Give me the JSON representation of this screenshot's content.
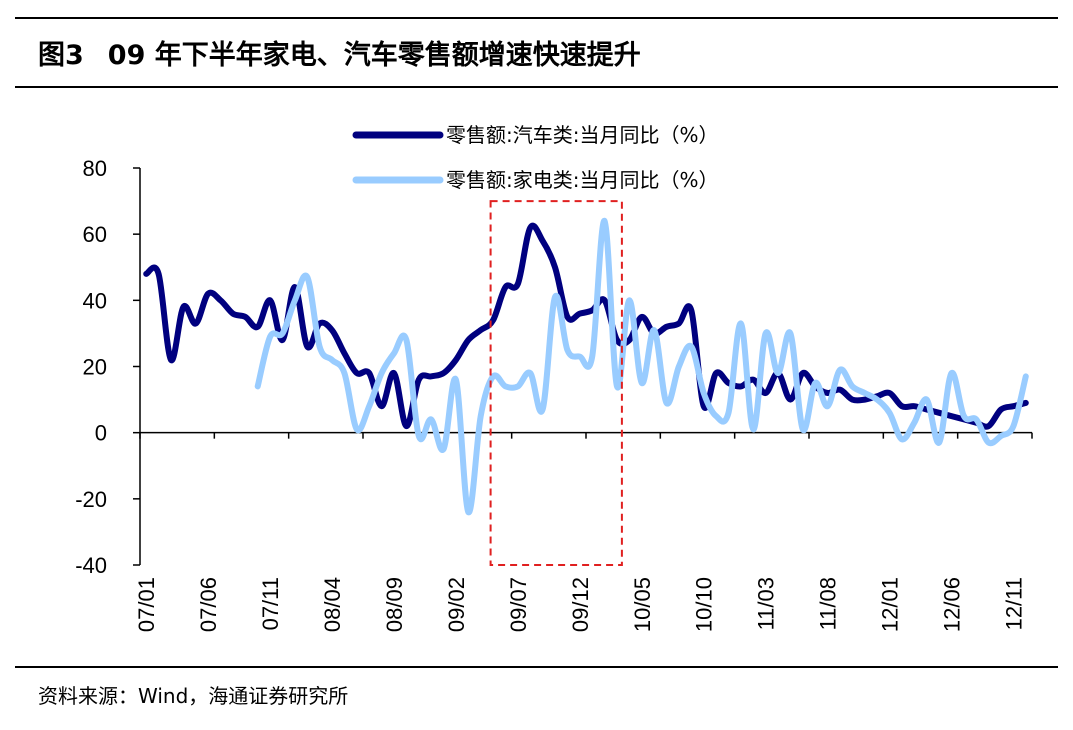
{
  "figure": {
    "title_num": "图3",
    "title_text": "09 年下半年家电、汽车零售额增速快速提升",
    "source": "资料来源：Wind，海通证券研究所"
  },
  "colors": {
    "auto": "#00007f",
    "appliance": "#99ccff",
    "highlight": "#e02020"
  },
  "chart_data": {
    "type": "line",
    "unit": "%",
    "ylim": [
      -40,
      80
    ],
    "yticks": [
      -40,
      -20,
      0,
      20,
      40,
      60,
      80
    ],
    "grid": false,
    "legend_position": "top",
    "highlight_box": {
      "x_start": "09/05",
      "x_end": "10/03",
      "y_range": [
        -40,
        70
      ]
    },
    "x": [
      "07/01",
      "07/02",
      "07/03",
      "07/04",
      "07/05",
      "07/06",
      "07/07",
      "07/08",
      "07/09",
      "07/10",
      "07/11",
      "07/12",
      "08/01",
      "08/02",
      "08/03",
      "08/04",
      "08/05",
      "08/06",
      "08/07",
      "08/08",
      "08/09",
      "08/10",
      "08/11",
      "08/12",
      "09/01",
      "09/02",
      "09/03",
      "09/04",
      "09/05",
      "09/06",
      "09/07",
      "09/08",
      "09/09",
      "09/10",
      "09/11",
      "09/12",
      "10/01",
      "10/02",
      "10/03",
      "10/04",
      "10/05",
      "10/06",
      "10/07",
      "10/08",
      "10/09",
      "10/10",
      "10/11",
      "10/12",
      "11/01",
      "11/02",
      "11/03",
      "11/04",
      "11/05",
      "11/06",
      "11/07",
      "11/08",
      "11/09",
      "11/10",
      "11/11",
      "11/12",
      "12/01",
      "12/02",
      "12/03",
      "12/04",
      "12/05",
      "12/06",
      "12/07",
      "12/08",
      "12/09",
      "12/10",
      "12/11",
      "12/12"
    ],
    "x_tick_labels": [
      "07/01",
      "07/06",
      "07/11",
      "08/04",
      "08/09",
      "09/02",
      "09/07",
      "09/12",
      "10/05",
      "10/10",
      "11/03",
      "11/08",
      "12/01",
      "12/06",
      "12/11"
    ],
    "series": [
      {
        "name": "零售额:汽车类:当月同比（%）",
        "values": [
          48,
          48,
          22,
          38,
          33,
          42,
          40,
          36,
          35,
          32,
          40,
          28,
          44,
          26,
          33,
          31,
          24,
          18,
          18,
          8,
          18,
          2,
          16,
          17,
          18,
          22,
          28,
          31,
          34,
          44,
          45,
          62,
          58,
          50,
          35,
          36,
          37,
          40,
          28,
          28,
          35,
          30,
          32,
          33,
          37,
          8,
          18,
          15,
          14,
          16,
          12,
          18,
          10,
          18,
          14,
          12,
          13,
          10,
          10,
          11,
          12,
          8,
          8,
          7,
          6,
          5,
          4,
          3,
          2,
          7,
          8,
          9
        ]
      },
      {
        "name": "零售额:家电类:当月同比（%）",
        "values": [
          null,
          null,
          null,
          null,
          null,
          null,
          null,
          null,
          null,
          14,
          29,
          30,
          40,
          47,
          26,
          22,
          18,
          1,
          8,
          18,
          24,
          28,
          -1,
          4,
          -5,
          16,
          -24,
          5,
          17,
          14,
          14,
          18,
          7,
          41,
          25,
          23,
          23,
          64,
          14,
          40,
          15,
          31,
          9,
          20,
          26,
          12,
          5,
          6,
          33,
          1,
          30,
          18,
          30,
          1,
          15,
          8,
          19,
          14,
          12,
          10,
          6,
          -2,
          3,
          10,
          -3,
          18,
          5,
          4,
          -3,
          -1,
          2,
          17
        ]
      }
    ]
  }
}
